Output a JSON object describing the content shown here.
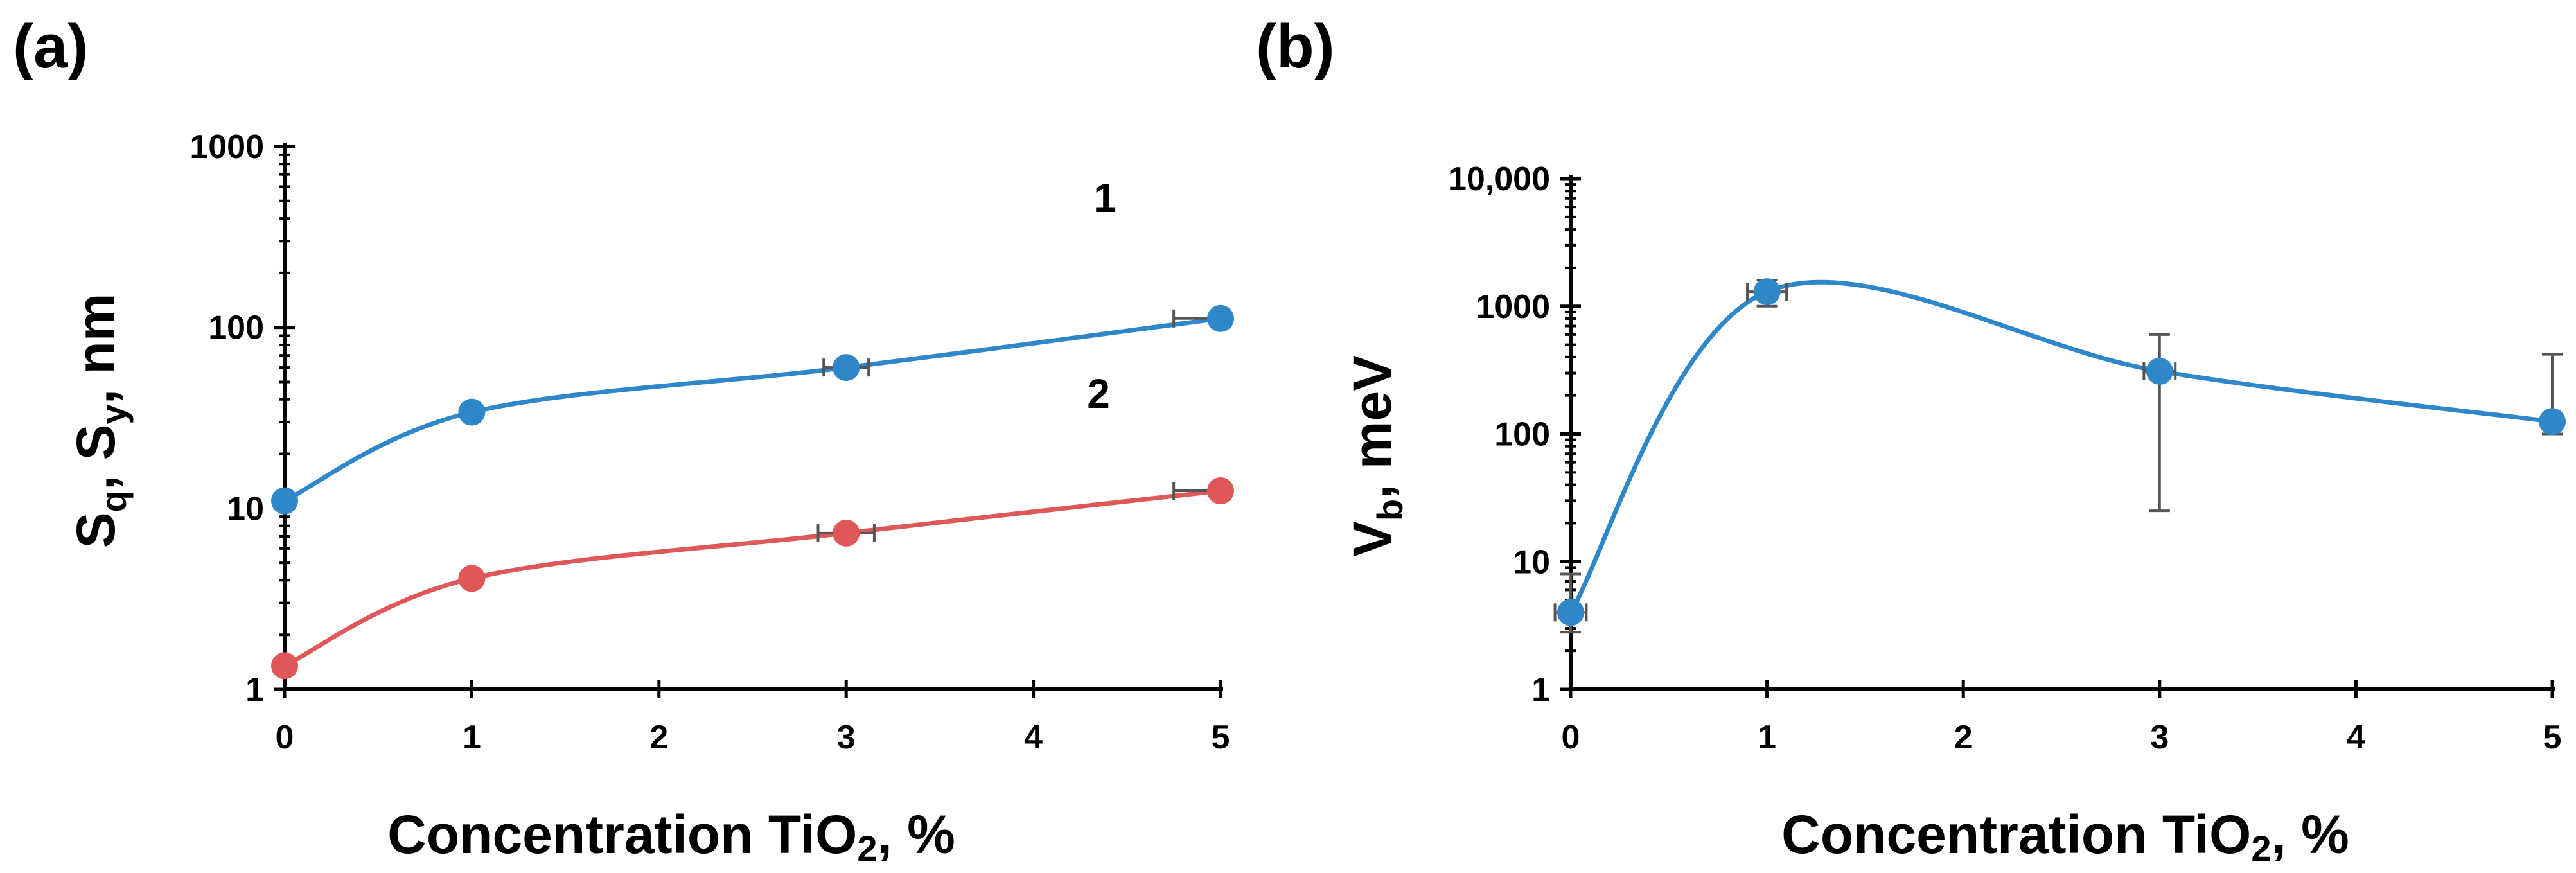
{
  "chart_data": [
    {
      "type": "line",
      "panel_label": "(a)",
      "ylabel_main": "S",
      "ylabel_sub1": "q",
      "ylabel_sep1": ", S",
      "ylabel_sub2": "y",
      "ylabel_tail": ", nm",
      "xlabel_main": "Concentration TiO",
      "xlabel_sub": "2",
      "xlabel_tail": ", %",
      "yscale": "log",
      "ylim": [
        1,
        1000
      ],
      "yticks": [
        1,
        10,
        100,
        1000
      ],
      "ytick_labels": [
        "1",
        "10",
        "100",
        "1000"
      ],
      "xlim": [
        0,
        5
      ],
      "xticks": [
        0,
        1,
        2,
        3,
        4,
        5
      ],
      "xtick_labels": [
        "0",
        "1",
        "2",
        "3",
        "4",
        "5"
      ],
      "series": [
        {
          "name": "1",
          "color": "#2e87c8",
          "x": [
            0,
            1,
            3,
            5
          ],
          "y": [
            11,
            34,
            60,
            112
          ],
          "xerr": [
            0,
            0.05,
            0.12,
            0.25
          ]
        },
        {
          "name": "2",
          "color": "#e05757",
          "x": [
            0,
            1,
            3,
            5
          ],
          "y": [
            1.35,
            4.1,
            7.3,
            12.5
          ],
          "xerr": [
            0,
            0.04,
            0.15,
            0.25
          ]
        }
      ]
    },
    {
      "type": "line",
      "panel_label": "(b)",
      "ylabel_main": "V",
      "ylabel_sub": "b",
      "ylabel_tail": ", meV",
      "xlabel_main": "Concentration TiO",
      "xlabel_sub": "2",
      "xlabel_tail": ", %",
      "yscale": "log",
      "ylim": [
        1,
        10000
      ],
      "yticks": [
        1,
        10,
        100,
        1000,
        10000
      ],
      "ytick_labels": [
        "1",
        "10",
        "100",
        "1000",
        "10,000"
      ],
      "xlim": [
        0,
        5
      ],
      "xticks": [
        0,
        1,
        2,
        3,
        4,
        5
      ],
      "xtick_labels": [
        "0",
        "1",
        "2",
        "3",
        "4",
        "5"
      ],
      "series": [
        {
          "name": "Vb",
          "color": "#2e87c8",
          "x": [
            0,
            1,
            3,
            5
          ],
          "y": [
            4,
            1300,
            310,
            125
          ],
          "y_low": [
            2.8,
            1000,
            25,
            100
          ],
          "y_high": [
            8,
            1600,
            600,
            420
          ],
          "xerr": [
            0.08,
            0.1,
            0.08,
            0
          ]
        }
      ]
    }
  ]
}
